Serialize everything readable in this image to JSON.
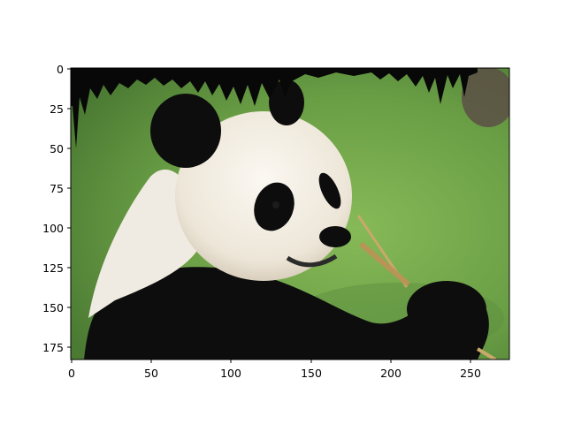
{
  "figure": {
    "background": "#ffffff",
    "axes_frame_color": "#000000",
    "subject": "giant-panda-eating-bamboo"
  },
  "axes": {
    "x_ticks": [
      "0",
      "50",
      "100",
      "150",
      "200",
      "250"
    ],
    "y_ticks": [
      "0",
      "25",
      "50",
      "75",
      "100",
      "125",
      "150",
      "175"
    ]
  },
  "image_scene": {
    "colors": {
      "grass_light": "#7fb04e",
      "grass_dark": "#3f6e2a",
      "fur_white": "#f2ede4",
      "fur_black": "#0c0c0c",
      "bamboo": "#c9a96a"
    }
  }
}
